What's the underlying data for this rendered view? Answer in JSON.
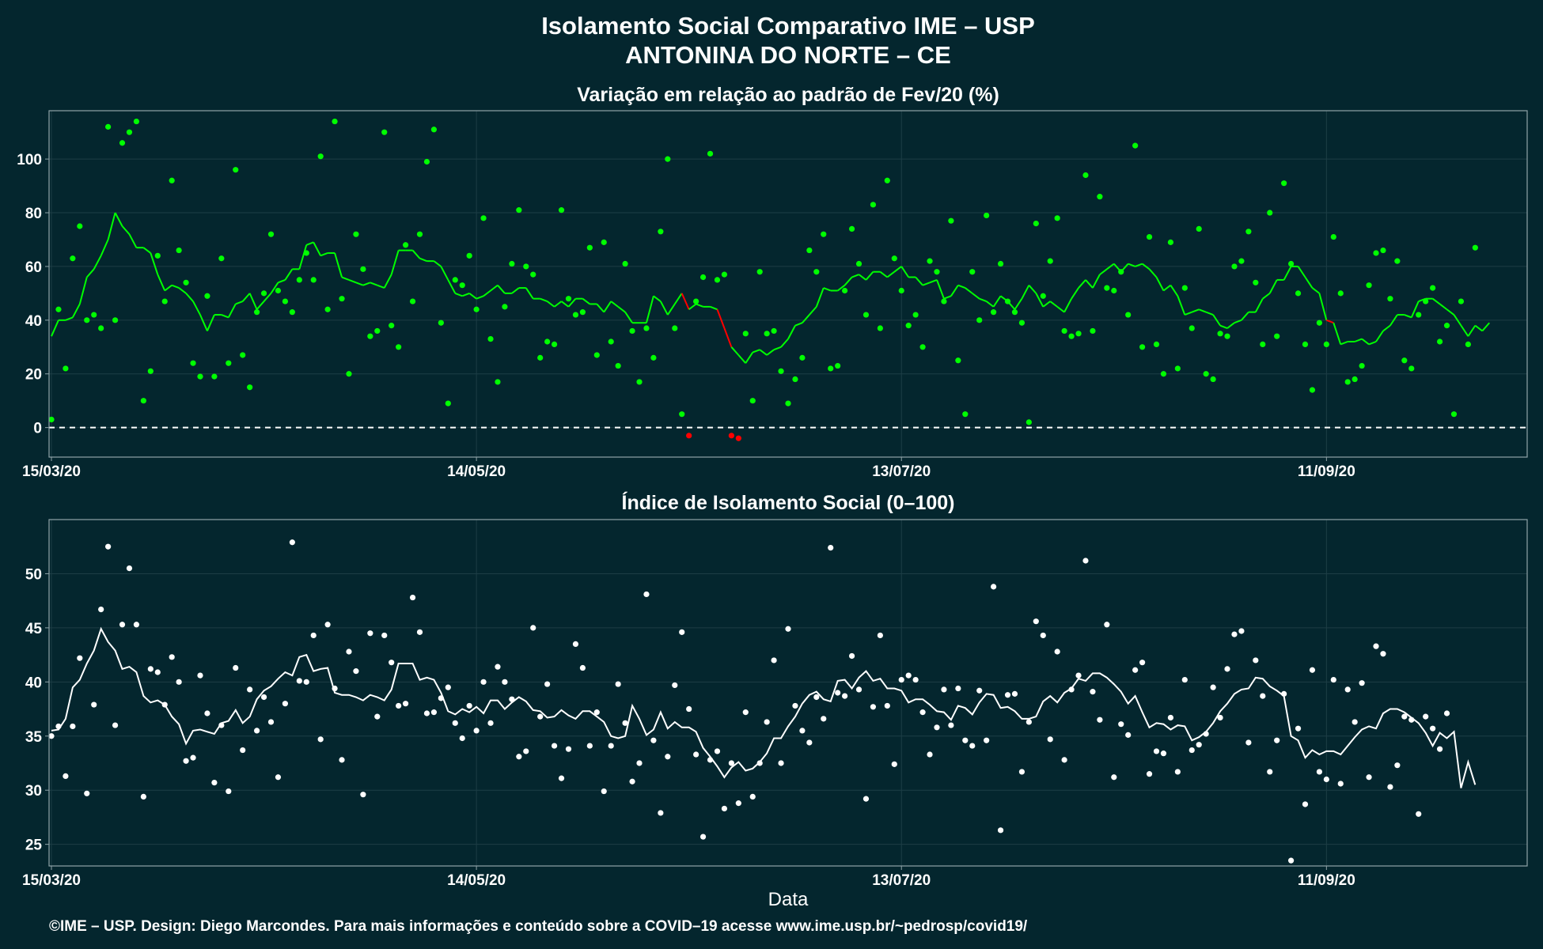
{
  "title_line1": "Isolamento Social Comparativo IME – USP",
  "title_line2": "ANTONINA DO NORTE – CE",
  "xlabel": "Data",
  "footer": "©IME – USP. Design: Diego Marcondes. Para mais informações e conteúdo sobre a COVID–19 acesse www.ime.usp.br/~pedrosp/covid19/",
  "colors": {
    "background": "#04262e",
    "positive": "#00ff00",
    "negative": "#ff0000",
    "index": "#ffffff",
    "grid": "#1d3e46",
    "frame": "#8fa3a8"
  },
  "chart_data": [
    {
      "type": "scatter",
      "title": "Variação em relação ao padrão de Fev/20 (%)",
      "x_ticks": [
        "15/03/20",
        "14/05/20",
        "13/07/20",
        "11/09/20"
      ],
      "x_range": [
        "15/03/20",
        "09/10/20"
      ],
      "ylim": [
        -11,
        118
      ],
      "y_ticks": [
        0,
        20,
        40,
        60,
        80,
        100
      ],
      "reference_line": 0,
      "series": [
        {
          "kind": "points",
          "values": [
            3,
            44,
            22,
            63,
            75,
            40,
            42,
            37,
            112,
            40,
            106,
            110,
            114,
            10,
            21,
            64,
            47,
            92,
            66,
            54,
            24,
            19,
            49,
            19,
            63,
            24,
            96,
            27,
            15,
            43,
            50,
            72,
            51,
            47,
            43,
            55,
            65,
            55,
            101,
            44,
            114,
            48,
            20,
            72,
            59,
            34,
            36,
            110,
            38,
            30,
            68,
            47,
            72,
            99,
            111,
            39,
            9,
            55,
            53,
            64,
            44,
            78,
            33,
            17,
            45,
            61,
            81,
            60,
            57,
            26,
            32,
            31,
            81,
            48,
            42,
            43,
            67,
            27,
            69,
            32,
            23,
            61,
            36,
            17,
            37,
            26,
            73,
            100,
            37,
            5,
            -3,
            47,
            56,
            102,
            55,
            57,
            -3,
            -4,
            35,
            10,
            58,
            35,
            36,
            21,
            9,
            18,
            26,
            66,
            58,
            72,
            22,
            23,
            51,
            74,
            61,
            42,
            83,
            37,
            92,
            63,
            51,
            38,
            42,
            30,
            62,
            58,
            47,
            77,
            25,
            5,
            58,
            40,
            79,
            43,
            61,
            47,
            43,
            39,
            2,
            76,
            49,
            62,
            78,
            36,
            34,
            35,
            94,
            36,
            86,
            52,
            51,
            58,
            42,
            105,
            30,
            71,
            31,
            20,
            69,
            22,
            52,
            37,
            74,
            20,
            18,
            35,
            34,
            60,
            62,
            73,
            54,
            31,
            80,
            34,
            91,
            61,
            50,
            31,
            14,
            39,
            31,
            71,
            50,
            17,
            18,
            23,
            53,
            65,
            66,
            48,
            62,
            25,
            22,
            42,
            47,
            52,
            32,
            38,
            5,
            47,
            31,
            67
          ]
        },
        {
          "kind": "moving_average",
          "values": [
            34,
            40,
            40,
            41,
            46,
            56,
            59,
            64,
            70,
            80,
            75,
            72,
            67,
            67,
            65,
            57,
            51,
            53,
            52,
            50,
            47,
            42,
            36,
            42,
            42,
            41,
            46,
            47,
            50,
            44,
            47,
            50,
            54,
            55,
            59,
            59,
            68,
            69,
            64,
            65,
            65,
            56,
            55,
            54,
            53,
            54,
            53,
            52,
            57,
            66,
            66,
            66,
            63,
            62,
            62,
            60,
            55,
            50,
            49,
            50,
            48,
            49,
            51,
            53,
            50,
            50,
            52,
            52,
            48,
            48,
            47,
            45,
            47,
            45,
            48,
            48,
            46,
            46,
            43,
            47,
            45,
            43,
            39,
            39,
            39,
            49,
            47,
            42,
            46,
            50,
            44,
            46,
            45,
            45,
            44,
            37,
            30,
            27,
            24,
            28,
            29,
            27,
            29,
            30,
            33,
            38,
            39,
            42,
            45,
            52,
            51,
            51,
            53,
            56,
            57,
            55,
            58,
            58,
            56,
            58,
            60,
            56,
            56,
            53,
            54,
            55,
            48,
            49,
            53,
            52,
            50,
            48,
            47,
            45,
            49,
            47,
            44,
            48,
            53,
            50,
            45,
            47,
            45,
            43,
            48,
            52,
            55,
            52,
            57,
            59,
            61,
            58,
            61,
            60,
            61,
            59,
            56,
            51,
            53,
            49,
            42,
            43,
            44,
            43,
            42,
            38,
            37,
            39,
            40,
            43,
            43,
            48,
            50,
            55,
            55,
            60,
            60,
            56,
            52,
            50,
            40,
            39,
            31,
            32,
            32,
            33,
            31,
            32,
            36,
            38,
            42,
            42,
            41,
            47,
            48,
            48,
            46,
            44,
            42,
            38,
            34,
            38,
            36,
            39
          ]
        }
      ]
    },
    {
      "type": "scatter",
      "title": "Índice de Isolamento Social (0–100)",
      "x_ticks": [
        "15/03/20",
        "14/05/20",
        "13/07/20",
        "11/09/20"
      ],
      "x_range": [
        "15/03/20",
        "09/10/20"
      ],
      "ylim": [
        23,
        55
      ],
      "y_ticks": [
        25,
        30,
        35,
        40,
        45,
        50
      ],
      "series": [
        {
          "kind": "points",
          "values": [
            35.0,
            35.9,
            31.3,
            35.9,
            42.2,
            29.7,
            37.9,
            46.7,
            52.5,
            36.0,
            45.3,
            50.5,
            45.3,
            29.4,
            41.2,
            40.9,
            37.9,
            42.3,
            40.0,
            32.7,
            33.0,
            40.6,
            37.1,
            30.7,
            36.0,
            29.9,
            41.3,
            33.7,
            39.3,
            35.5,
            38.6,
            36.3,
            31.2,
            38.0,
            52.9,
            40.1,
            40.0,
            44.3,
            34.7,
            45.3,
            39.4,
            32.8,
            42.8,
            41.0,
            29.6,
            44.5,
            36.8,
            44.3,
            41.8,
            37.8,
            38.0,
            47.8,
            44.6,
            37.1,
            37.2,
            38.5,
            39.5,
            36.2,
            34.8,
            37.8,
            35.5,
            40.0,
            36.2,
            41.4,
            40.0,
            38.4,
            33.1,
            33.6,
            45.0,
            36.8,
            39.8,
            34.1,
            31.1,
            33.8,
            43.5,
            41.3,
            34.1,
            37.2,
            29.9,
            34.1,
            39.8,
            36.2,
            30.8,
            32.5,
            48.1,
            34.6,
            27.9,
            33.1,
            39.7,
            44.6,
            37.5,
            33.3,
            25.7,
            32.8,
            33.6,
            28.3,
            32.5,
            28.8,
            37.2,
            29.4,
            32.5,
            36.3,
            42.0,
            32.5,
            44.9,
            37.8,
            35.5,
            34.4,
            38.6,
            36.6,
            52.4,
            39.0,
            38.7,
            42.4,
            39.3,
            29.2,
            37.7,
            44.3,
            37.8,
            32.4,
            40.2,
            40.6,
            40.2,
            37.2,
            33.3,
            35.8,
            39.3,
            36.0,
            39.4,
            34.6,
            34.1,
            39.2,
            34.6,
            48.8,
            26.3,
            38.8,
            38.9,
            31.7,
            36.3,
            45.6,
            44.3,
            34.7,
            42.8,
            32.8,
            39.3,
            40.6,
            51.2,
            39.1,
            36.5,
            45.3,
            31.2,
            36.1,
            35.1,
            41.1,
            41.8,
            31.5,
            33.6,
            33.4,
            36.7,
            31.7,
            40.2,
            33.7,
            34.2,
            35.2,
            39.5,
            36.7,
            41.2,
            44.4,
            44.7,
            34.4,
            42.0,
            38.7,
            31.7,
            34.6,
            38.9,
            23.5,
            35.7,
            28.7,
            41.1,
            31.7,
            31.0,
            40.2,
            30.6,
            39.3,
            36.3,
            39.9,
            31.2,
            43.3,
            42.6,
            30.3,
            32.3,
            36.8,
            36.5,
            27.8,
            36.8,
            35.7,
            33.8,
            37.1
          ]
        },
        {
          "kind": "moving_average",
          "values": [
            35.5,
            35.6,
            36.6,
            39.5,
            40.2,
            41.7,
            42.9,
            44.9,
            43.7,
            42.9,
            41.2,
            41.4,
            40.9,
            38.7,
            38.1,
            38.3,
            37.9,
            36.8,
            36.1,
            34.3,
            35.5,
            35.6,
            35.4,
            35.2,
            36.2,
            36.4,
            37.4,
            36.2,
            36.8,
            38.4,
            39.2,
            39.6,
            40.3,
            40.9,
            40.6,
            42.3,
            42.5,
            41.0,
            41.2,
            41.3,
            39.0,
            38.8,
            38.8,
            38.6,
            38.3,
            38.8,
            38.6,
            38.3,
            39.3,
            41.7,
            41.7,
            41.7,
            40.2,
            40.4,
            40.2,
            39.0,
            37.3,
            37.0,
            37.5,
            37.2,
            37.7,
            37.1,
            38.3,
            38.3,
            37.5,
            38.1,
            38.6,
            38.2,
            37.4,
            37.3,
            36.7,
            36.8,
            37.4,
            36.9,
            36.6,
            37.3,
            37.3,
            36.8,
            36.3,
            35.0,
            34.8,
            35.0,
            37.8,
            36.6,
            35.1,
            35.6,
            37.2,
            35.7,
            36.3,
            35.8,
            35.8,
            35.4,
            33.9,
            33.1,
            32.2,
            31.2,
            32.1,
            32.6,
            31.8,
            32.0,
            32.6,
            33.4,
            34.8,
            34.8,
            35.9,
            36.8,
            38.0,
            38.8,
            39.1,
            38.4,
            38.2,
            40.1,
            40.2,
            39.4,
            40.4,
            41.0,
            40.1,
            40.3,
            39.4,
            39.4,
            39.2,
            38.1,
            38.4,
            38.4,
            37.9,
            37.3,
            37.2,
            36.5,
            37.8,
            37.6,
            37.0,
            38.1,
            38.9,
            38.8,
            37.6,
            37.7,
            37.3,
            36.6,
            36.6,
            36.8,
            38.2,
            38.7,
            38.1,
            39.0,
            39.4,
            40.3,
            40.1,
            40.8,
            40.8,
            40.4,
            39.8,
            39.1,
            38.0,
            38.7,
            37.2,
            35.8,
            36.2,
            36.1,
            35.6,
            36.0,
            35.9,
            34.6,
            34.9,
            35.4,
            36.2,
            37.3,
            38.0,
            38.9,
            39.3,
            39.4,
            40.4,
            40.3,
            39.6,
            39.2,
            38.7,
            35.0,
            34.6,
            33.0,
            33.7,
            33.3,
            33.6,
            33.6,
            33.3,
            34.1,
            34.9,
            35.6,
            35.9,
            35.7,
            37.1,
            37.5,
            37.5,
            37.2,
            36.7,
            36.2,
            35.3,
            34.1,
            35.3,
            34.8,
            35.4,
            30.2,
            32.6,
            30.5
          ]
        }
      ]
    }
  ]
}
